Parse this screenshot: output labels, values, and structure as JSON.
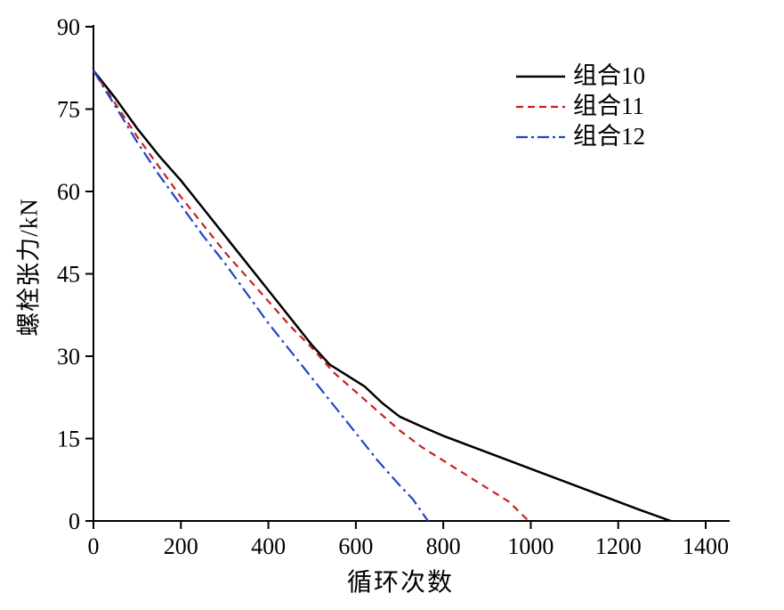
{
  "chart_data": {
    "type": "line",
    "title": "",
    "xlabel": "循环次数",
    "ylabel": "螺栓张力/kN",
    "xlim": [
      0,
      1400
    ],
    "ylim": [
      0,
      90
    ],
    "xticks": [
      0,
      200,
      400,
      600,
      800,
      1000,
      1200,
      1400
    ],
    "yticks": [
      0,
      15,
      30,
      45,
      60,
      75,
      90
    ],
    "grid": false,
    "legend": {
      "position": "top-right-inside"
    },
    "series": [
      {
        "name": "组合10",
        "color": "#000000",
        "line_style": "solid",
        "points": [
          [
            0,
            82
          ],
          [
            50,
            77
          ],
          [
            100,
            71.5
          ],
          [
            150,
            66.5
          ],
          [
            200,
            62
          ],
          [
            250,
            57
          ],
          [
            300,
            52
          ],
          [
            350,
            47
          ],
          [
            400,
            42
          ],
          [
            450,
            37
          ],
          [
            500,
            32
          ],
          [
            540,
            28.5
          ],
          [
            580,
            26.5
          ],
          [
            620,
            24.5
          ],
          [
            660,
            21.5
          ],
          [
            700,
            19
          ],
          [
            750,
            17.2
          ],
          [
            800,
            15.5
          ],
          [
            850,
            14
          ],
          [
            900,
            12.5
          ],
          [
            950,
            11
          ],
          [
            1000,
            9.5
          ],
          [
            1050,
            8
          ],
          [
            1100,
            6.5
          ],
          [
            1150,
            5
          ],
          [
            1200,
            3.5
          ],
          [
            1250,
            2
          ],
          [
            1320,
            0
          ]
        ]
      },
      {
        "name": "组合11",
        "color": "#c8201e",
        "line_style": "dashed",
        "points": [
          [
            0,
            82
          ],
          [
            50,
            76
          ],
          [
            100,
            70
          ],
          [
            150,
            64.5
          ],
          [
            200,
            59
          ],
          [
            250,
            54
          ],
          [
            300,
            49
          ],
          [
            350,
            44.5
          ],
          [
            400,
            40
          ],
          [
            450,
            35.5
          ],
          [
            500,
            31.5
          ],
          [
            550,
            27
          ],
          [
            600,
            23.5
          ],
          [
            650,
            20
          ],
          [
            700,
            16.5
          ],
          [
            750,
            13.5
          ],
          [
            800,
            11
          ],
          [
            850,
            8.5
          ],
          [
            900,
            6
          ],
          [
            950,
            3.5
          ],
          [
            995,
            0
          ]
        ]
      },
      {
        "name": "组合12",
        "color": "#2143c7",
        "line_style": "dashdot",
        "points": [
          [
            0,
            82
          ],
          [
            50,
            75.5
          ],
          [
            100,
            69
          ],
          [
            150,
            63
          ],
          [
            200,
            57.5
          ],
          [
            250,
            52
          ],
          [
            300,
            47
          ],
          [
            350,
            41.5
          ],
          [
            400,
            36
          ],
          [
            450,
            31
          ],
          [
            500,
            26
          ],
          [
            550,
            21
          ],
          [
            600,
            16
          ],
          [
            650,
            11
          ],
          [
            700,
            6.5
          ],
          [
            730,
            4
          ],
          [
            765,
            0
          ]
        ]
      }
    ]
  }
}
